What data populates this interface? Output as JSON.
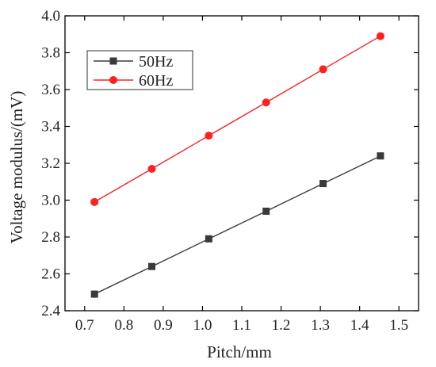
{
  "chart_data": {
    "type": "line",
    "title": "",
    "xlabel": "Pitch/mm",
    "ylabel": "Voltage modulus/(mV)",
    "xlim": [
      0.65,
      1.55
    ],
    "ylim": [
      2.4,
      4.0
    ],
    "xticks": [
      "0.7",
      "0.8",
      "0.9",
      "1.0",
      "1.1",
      "1.2",
      "1.3",
      "1.4",
      "1.5"
    ],
    "yticks": [
      "2.4",
      "2.6",
      "2.8",
      "3.0",
      "3.2",
      "3.4",
      "3.6",
      "3.8",
      "4.0"
    ],
    "grid": false,
    "legend_position": "top-left",
    "series": [
      {
        "name": "50Hz",
        "color": "#3a3a3a",
        "marker": "square",
        "x": [
          0.725,
          0.871,
          1.016,
          1.162,
          1.307,
          1.453
        ],
        "y": [
          2.49,
          2.64,
          2.79,
          2.94,
          3.09,
          3.24
        ]
      },
      {
        "name": "60Hz",
        "color": "#ff2020",
        "marker": "circle",
        "x": [
          0.725,
          0.871,
          1.016,
          1.162,
          1.307,
          1.453
        ],
        "y": [
          2.99,
          3.17,
          3.35,
          3.53,
          3.71,
          3.89
        ]
      }
    ]
  }
}
